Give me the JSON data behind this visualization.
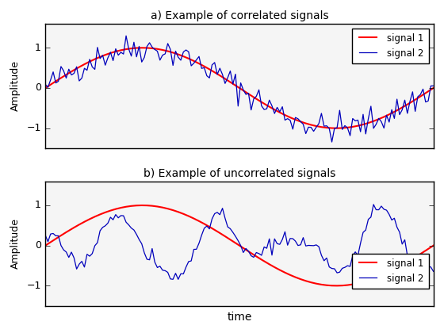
{
  "title_a": "a) Example of correlated signals",
  "title_b": "b) Example of uncorrelated signals",
  "xlabel": "time",
  "ylabel": "Amplitude",
  "signal1_color": "#ff0000",
  "signal2_color": "#0000bb",
  "legend_signal1": "signal 1",
  "legend_signal2": "signal 2",
  "figsize": [
    5.6,
    4.2
  ],
  "dpi": 100,
  "n_points": 150,
  "bg_color": "#f0f0f0"
}
